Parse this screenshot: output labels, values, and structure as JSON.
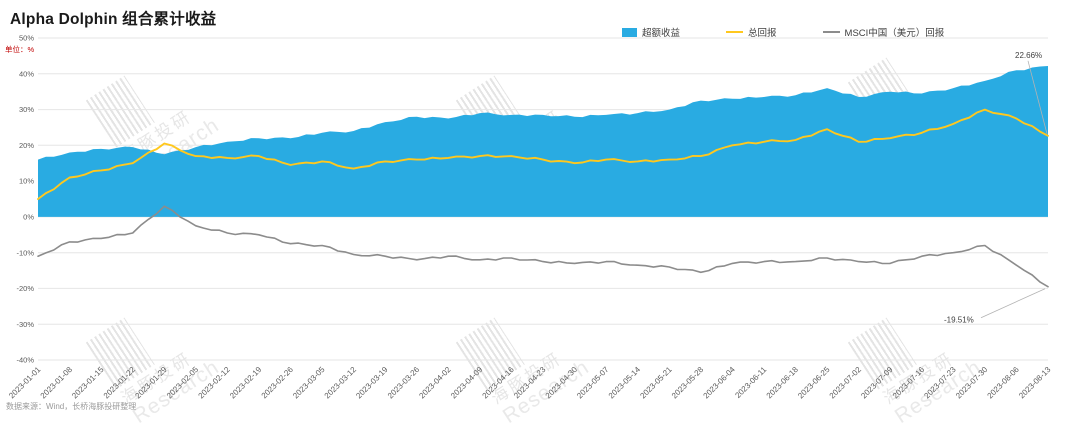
{
  "header": {
    "title": "Alpha Dolphin 组合累计收益"
  },
  "y_axis": {
    "unit_label": "单位：%"
  },
  "legend": {
    "items": [
      {
        "label": "超额收益",
        "marker": "square",
        "color": "#29ABE2"
      },
      {
        "label": "总回报",
        "marker": "line",
        "color": "#FFC81E"
      },
      {
        "label": "MSCI中国（美元）回报",
        "marker": "line",
        "color": "#8C8C8C"
      }
    ]
  },
  "chart_data": {
    "type": "area",
    "title": "Alpha Dolphin 组合累计收益",
    "xlabel": "",
    "ylabel": "单位：%",
    "ylim": [
      -40,
      50
    ],
    "yticks": [
      "50%",
      "40%",
      "30%",
      "20%",
      "10%",
      "0%",
      "-10%",
      "-20%",
      "-30%",
      "-40%"
    ],
    "grid": true,
    "legend_position": "top",
    "x": [
      "2023-01-01",
      "2023-01-08",
      "2023-01-15",
      "2023-01-22",
      "2023-01-29",
      "2023-02-05",
      "2023-02-12",
      "2023-02-19",
      "2023-02-26",
      "2023-03-05",
      "2023-03-12",
      "2023-03-19",
      "2023-03-26",
      "2023-04-02",
      "2023-04-09",
      "2023-04-16",
      "2023-04-23",
      "2023-04-30",
      "2023-05-07",
      "2023-05-14",
      "2023-05-21",
      "2023-05-28",
      "2023-06-04",
      "2023-06-11",
      "2023-06-18",
      "2023-06-25",
      "2023-07-02",
      "2023-07-09",
      "2023-07-16",
      "2023-07-23",
      "2023-07-30",
      "2023-08-06",
      "2023-08-13"
    ],
    "series": [
      {
        "name": "超额收益",
        "render": "area",
        "color": "#29ABE2",
        "values": [
          16.0,
          18.0,
          19.0,
          19.5,
          17.5,
          19.5,
          21.0,
          22.0,
          22.0,
          23.5,
          24.0,
          26.5,
          28.0,
          27.5,
          29.0,
          28.5,
          28.5,
          28.0,
          28.5,
          29.0,
          30.0,
          32.5,
          33.0,
          33.5,
          34.0,
          36.0,
          33.5,
          35.0,
          34.5,
          36.0,
          38.0,
          41.0,
          42.17
        ]
      },
      {
        "name": "总回报",
        "render": "line",
        "color": "#FFC81E",
        "values": [
          5.0,
          11.0,
          13.0,
          15.0,
          20.5,
          17.0,
          16.5,
          17.0,
          14.5,
          15.5,
          13.5,
          15.5,
          16.0,
          16.5,
          17.0,
          17.0,
          16.0,
          15.0,
          16.0,
          15.5,
          16.0,
          17.0,
          20.0,
          21.0,
          21.5,
          24.5,
          21.0,
          22.0,
          23.5,
          26.0,
          30.0,
          27.5,
          22.66
        ]
      },
      {
        "name": "MSCI中国（美元）回报",
        "render": "line",
        "color": "#8C8C8C",
        "values": [
          -11.0,
          -7.0,
          -6.0,
          -4.5,
          3.0,
          -2.5,
          -4.5,
          -5.0,
          -7.5,
          -8.0,
          -10.5,
          -11.0,
          -12.0,
          -11.0,
          -12.0,
          -11.5,
          -12.5,
          -13.0,
          -12.5,
          -13.5,
          -14.0,
          -15.5,
          -13.0,
          -12.5,
          -12.5,
          -11.5,
          -12.5,
          -13.0,
          -11.0,
          -10.0,
          -8.0,
          -13.5,
          -19.51
        ]
      }
    ],
    "annotations": [
      {
        "text": "22.66%",
        "series_index": 1
      },
      {
        "text": "-19.51%",
        "series_index": 2
      }
    ]
  },
  "watermark": {
    "cn": "海豚投研",
    "en": "Research"
  },
  "footer": {
    "source": "数据来源：Wind，长桥海豚投研整理"
  }
}
